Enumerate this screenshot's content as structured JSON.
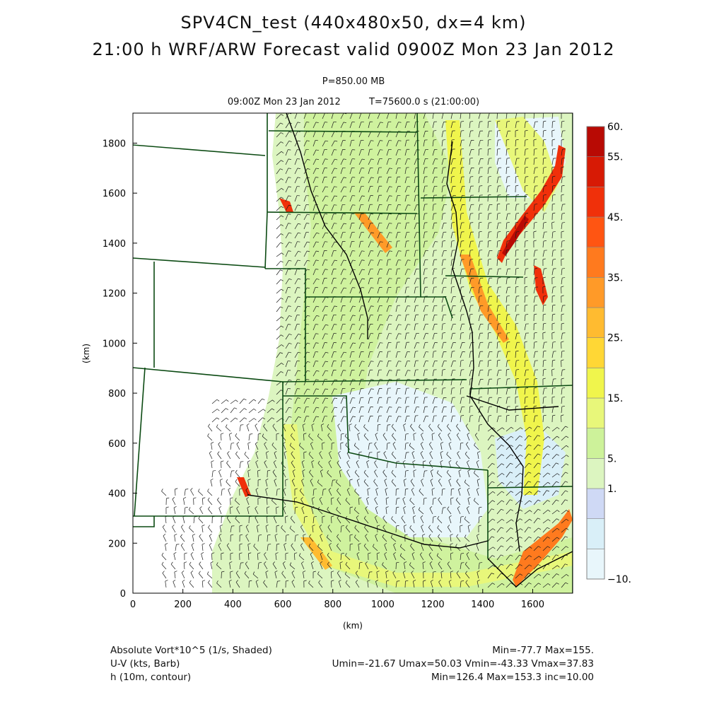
{
  "header": {
    "title_line1": "SPV4CN_test (440x480x50, dx=4 km)",
    "title_line2": "21:00 h WRF/ARW Forecast valid 0900Z Mon 23 Jan 2012",
    "level": "P=850.00 MB",
    "valid_time": "09:00Z Mon 23 Jan 2012",
    "model_time": "T=75600.0 s (21:00:00)"
  },
  "chart_data": {
    "type": "heatmap",
    "xlabel": "(km)",
    "ylabel": "(km)",
    "xlim": [
      0,
      1760
    ],
    "ylim": [
      0,
      1920
    ],
    "x_ticks": [
      "0",
      "200",
      "400",
      "600",
      "800",
      "1000",
      "1200",
      "1400",
      "1600"
    ],
    "y_ticks": [
      "0",
      "200",
      "400",
      "600",
      "800",
      "1000",
      "1200",
      "1400",
      "1600",
      "1800"
    ],
    "colorbar": {
      "levels": [
        -10,
        -5,
        0,
        1,
        5,
        10,
        15,
        20,
        25,
        30,
        35,
        40,
        45,
        50,
        55,
        60
      ],
      "labels": [
        {
          "level": -10,
          "text": "−10."
        },
        {
          "level": 1,
          "text": "1."
        },
        {
          "level": 5,
          "text": "5."
        },
        {
          "level": 15,
          "text": "15."
        },
        {
          "level": 25,
          "text": "25."
        },
        {
          "level": 35,
          "text": "35."
        },
        {
          "level": 45,
          "text": "45."
        },
        {
          "level": 55,
          "text": "55."
        },
        {
          "level": 60,
          "text": "60."
        }
      ],
      "colors": [
        "#e8f6fb",
        "#d9eff8",
        "#cfd9f5",
        "#dcf5c0",
        "#cdf29a",
        "#e8f77a",
        "#f0f54c",
        "#ffd735",
        "#ffbb30",
        "#ff9a28",
        "#ff7a1e",
        "#ff5512",
        "#f0300a",
        "#d71a05",
        "#b80a04"
      ]
    },
    "annotations": {
      "vort_label": "Absolute Vort*10^5 (1/s, Shaded)",
      "vort_stats": "Min=-77.7 Max=155.",
      "wind_label": "U-V (kts, Barb)",
      "wind_stats": "Umin=-21.67 Umax=50.03 Vmin=-43.33 Vmax=37.83",
      "height_label": "h (10m, contour)",
      "height_stats": "Min=126.4 Max=153.3 inc=10.00"
    },
    "grid": false
  }
}
